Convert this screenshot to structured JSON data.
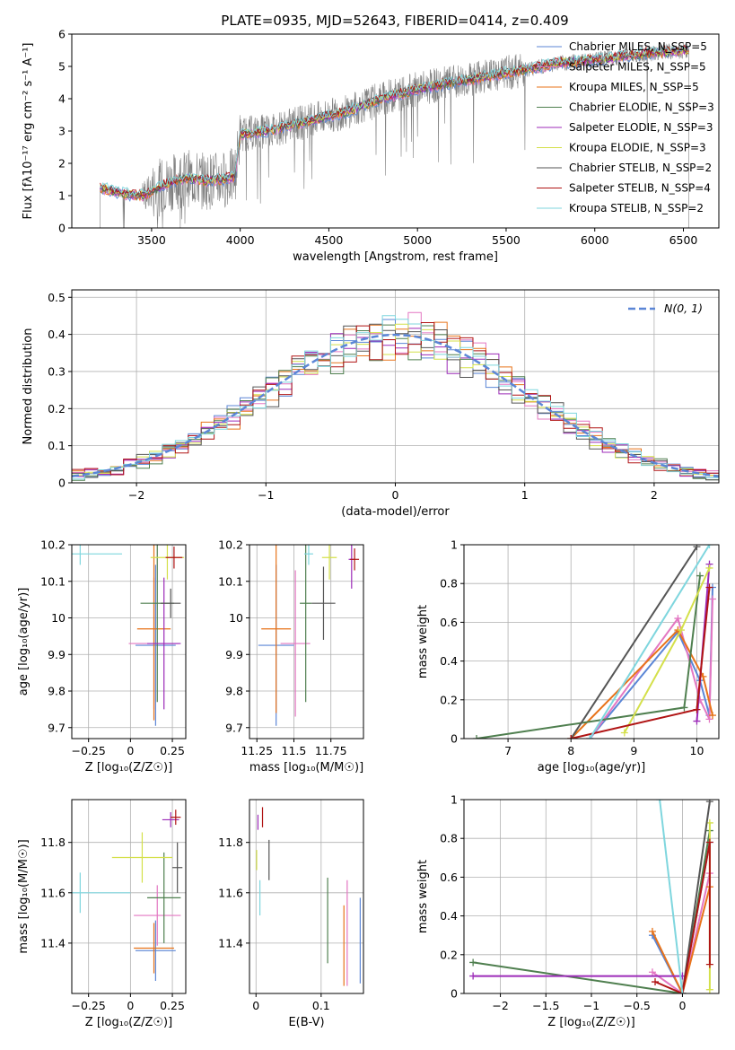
{
  "page_title": "PLATE=0935, MJD=52643, FIBERID=0414, z=0.409",
  "chart_data": [
    {
      "id": "spectrum",
      "type": "line",
      "xlabel": "wavelength [Angstrom, rest frame]",
      "ylabel": "Flux [fλ10⁻¹⁷ erg cm⁻² s⁻¹ A⁻¹]",
      "xlim": [
        3050,
        6700
      ],
      "ylim": [
        0,
        6
      ],
      "xticks": [
        3500,
        4000,
        4500,
        5000,
        5500,
        6000,
        6500
      ],
      "yticks": [
        0,
        1,
        2,
        3,
        4,
        5,
        6
      ],
      "grid": false,
      "legend_position": "top-right",
      "data_range": [
        3210,
        6530
      ],
      "continuum": {
        "x": [
          3210,
          3350,
          3450,
          3600,
          3700,
          3800,
          3900,
          3970,
          4000,
          4150,
          4300,
          4450,
          4600,
          4800,
          5000,
          5200,
          5400,
          5600,
          5800,
          6000,
          6200,
          6400,
          6530
        ],
        "y": [
          1.25,
          1.05,
          1.0,
          1.4,
          1.55,
          1.45,
          1.5,
          1.6,
          2.9,
          3.0,
          3.2,
          3.4,
          3.6,
          4.0,
          4.3,
          4.5,
          4.7,
          4.9,
          5.1,
          5.2,
          5.35,
          5.45,
          5.5
        ]
      },
      "series": [
        {
          "name": "Chabrier MILES, N_SSP=5",
          "color": "#5b86d6"
        },
        {
          "name": "Salpeter MILES, N_SSP=5",
          "color": "#e377c2"
        },
        {
          "name": "Kroupa MILES, N_SSP=5",
          "color": "#e8731a"
        },
        {
          "name": "Chabrier ELODIE, N_SSP=3",
          "color": "#4f7f4f"
        },
        {
          "name": "Salpeter ELODIE, N_SSP=3",
          "color": "#9c2bb8"
        },
        {
          "name": "Kroupa ELODIE, N_SSP=3",
          "color": "#d4e04a"
        },
        {
          "name": "Chabrier STELIB, N_SSP=2",
          "color": "#555555"
        },
        {
          "name": "Salpeter STELIB, N_SSP=4",
          "color": "#b01414"
        },
        {
          "name": "Kroupa STELIB, N_SSP=2",
          "color": "#7fd6de"
        }
      ],
      "data_color": "#808080"
    },
    {
      "id": "residuals",
      "type": "line",
      "xlabel": "(data-model)/error",
      "ylabel": "Normed distribution",
      "xlim": [
        -2.5,
        2.5
      ],
      "ylim": [
        0,
        0.52
      ],
      "xticks": [
        -2,
        -1,
        0,
        1,
        2
      ],
      "yticks": [
        0.0,
        0.1,
        0.2,
        0.3,
        0.4,
        0.5
      ],
      "grid": true,
      "legend_position": "top-right",
      "legend_label": "N(0, 1)",
      "normal_color": "#5b86d6",
      "bin_width": 0.1
    },
    {
      "id": "age_vs_Z",
      "type": "scatter",
      "xlabel": "Z [log₁₀(Z/Z☉)]",
      "ylabel": "age  [log₁₀(age/yr)]",
      "xlim": [
        -0.35,
        0.33
      ],
      "ylim": [
        9.67,
        10.2
      ],
      "xticks": [
        -0.25,
        0.0,
        0.25
      ],
      "yticks": [
        9.7,
        9.8,
        9.9,
        10.0,
        10.1,
        10.2
      ],
      "grid": true,
      "points": [
        {
          "x": 0.15,
          "y": 9.925,
          "xerr": 0.12,
          "yerr": 0.22,
          "color": "#5b86d6"
        },
        {
          "x": 0.14,
          "y": 9.93,
          "xerr": 0.15,
          "yerr": 0.18,
          "color": "#e377c2"
        },
        {
          "x": 0.14,
          "y": 9.97,
          "xerr": 0.1,
          "yerr": 0.25,
          "color": "#e8731a"
        },
        {
          "x": 0.16,
          "y": 10.04,
          "xerr": 0.1,
          "yerr": 0.27,
          "color": "#4f7f4f"
        },
        {
          "x": 0.2,
          "y": 9.93,
          "xerr": 0.1,
          "yerr": 0.18,
          "color": "#9c2bb8"
        },
        {
          "x": 0.22,
          "y": 10.165,
          "xerr": 0.1,
          "yerr": 0.06,
          "color": "#d4e04a"
        },
        {
          "x": 0.24,
          "y": 10.04,
          "xerr": 0.06,
          "yerr": 0.04,
          "color": "#555555"
        },
        {
          "x": 0.26,
          "y": 10.165,
          "xerr": 0.05,
          "yerr": 0.03,
          "color": "#b01414"
        },
        {
          "x": -0.3,
          "y": 10.175,
          "xerr": 0.25,
          "yerr": 0.03,
          "color": "#7fd6de"
        }
      ]
    },
    {
      "id": "age_vs_mass",
      "type": "scatter",
      "xlabel": "mass [log₁₀(M/M☉)]",
      "ylabel": "",
      "xlim": [
        11.2,
        11.97
      ],
      "ylim": [
        9.67,
        10.2
      ],
      "xticks": [
        11.25,
        11.5,
        11.75
      ],
      "yticks": [
        9.7,
        9.8,
        9.9,
        10.0,
        10.1,
        10.2
      ],
      "grid": true,
      "points": [
        {
          "x": 11.38,
          "y": 9.925,
          "xerr": 0.12,
          "yerr": 0.22,
          "color": "#5b86d6"
        },
        {
          "x": 11.51,
          "y": 9.93,
          "xerr": 0.1,
          "yerr": 0.2,
          "color": "#e377c2"
        },
        {
          "x": 11.38,
          "y": 9.97,
          "xerr": 0.1,
          "yerr": 0.23,
          "color": "#e8731a"
        },
        {
          "x": 11.58,
          "y": 10.04,
          "xerr": 0.04,
          "yerr": 0.27,
          "color": "#4f7f4f"
        },
        {
          "x": 11.89,
          "y": 10.16,
          "xerr": 0.02,
          "yerr": 0.08,
          "color": "#9c2bb8"
        },
        {
          "x": 11.74,
          "y": 10.165,
          "xerr": 0.05,
          "yerr": 0.06,
          "color": "#d4e04a"
        },
        {
          "x": 11.7,
          "y": 10.04,
          "xerr": 0.08,
          "yerr": 0.1,
          "color": "#555555"
        },
        {
          "x": 11.91,
          "y": 10.16,
          "xerr": 0.03,
          "yerr": 0.03,
          "color": "#b01414"
        },
        {
          "x": 11.6,
          "y": 10.175,
          "xerr": 0.03,
          "yerr": 0.03,
          "color": "#7fd6de"
        }
      ]
    },
    {
      "id": "weight_vs_age",
      "type": "line",
      "xlabel": "age  [log₁₀(age/yr)]",
      "ylabel": "mass weight",
      "xlim": [
        6.3,
        10.35
      ],
      "ylim": [
        0,
        1
      ],
      "xticks": [
        7,
        8,
        9,
        10
      ],
      "yticks": [
        0.0,
        0.2,
        0.4,
        0.6,
        0.8,
        1.0
      ],
      "grid": true,
      "series": [
        {
          "color": "#5b86d6",
          "x": [
            8.3,
            9.7,
            10.05,
            10.2,
            10.25
          ],
          "y": [
            0.0,
            0.55,
            0.3,
            0.12,
            0.78
          ]
        },
        {
          "color": "#e377c2",
          "x": [
            8.3,
            9.7,
            10.05,
            10.2,
            10.25
          ],
          "y": [
            0.0,
            0.62,
            0.2,
            0.1,
            0.72
          ]
        },
        {
          "color": "#e8731a",
          "x": [
            8.0,
            9.7,
            10.1,
            10.25
          ],
          "y": [
            0.0,
            0.56,
            0.32,
            0.12
          ]
        },
        {
          "color": "#4f7f4f",
          "x": [
            6.5,
            9.8,
            10.05
          ],
          "y": [
            0.0,
            0.16,
            0.84
          ]
        },
        {
          "color": "#9c2bb8",
          "x": [
            10.0,
            10.2
          ],
          "y": [
            0.09,
            0.9
          ]
        },
        {
          "color": "#d4e04a",
          "x": [
            8.85,
            9.75,
            10.2
          ],
          "y": [
            0.03,
            0.56,
            0.88
          ]
        },
        {
          "color": "#555555",
          "x": [
            8.0,
            10.0
          ],
          "y": [
            0.0,
            0.99
          ]
        },
        {
          "color": "#b01414",
          "x": [
            8.0,
            10.0,
            10.2
          ],
          "y": [
            0.0,
            0.15,
            0.78
          ]
        },
        {
          "color": "#7fd6de",
          "x": [
            8.3,
            10.2
          ],
          "y": [
            0.0,
            1.0
          ]
        }
      ]
    },
    {
      "id": "mass_vs_Z",
      "type": "scatter",
      "xlabel": "Z [log₁₀(Z/Z☉)]",
      "ylabel": "mass [log₁₀(M/M☉)]",
      "xlim": [
        -0.35,
        0.33
      ],
      "ylim": [
        11.2,
        11.97
      ],
      "xticks": [
        -0.25,
        0.0,
        0.25
      ],
      "yticks": [
        11.4,
        11.6,
        11.8
      ],
      "grid": true,
      "points": [
        {
          "x": 0.15,
          "y": 11.37,
          "xerr": 0.12,
          "yerr": 0.12,
          "color": "#5b86d6"
        },
        {
          "x": 0.16,
          "y": 11.51,
          "xerr": 0.14,
          "yerr": 0.12,
          "color": "#e377c2"
        },
        {
          "x": 0.14,
          "y": 11.38,
          "xerr": 0.12,
          "yerr": 0.1,
          "color": "#e8731a"
        },
        {
          "x": 0.2,
          "y": 11.58,
          "xerr": 0.1,
          "yerr": 0.18,
          "color": "#4f7f4f"
        },
        {
          "x": 0.24,
          "y": 11.89,
          "xerr": 0.05,
          "yerr": 0.03,
          "color": "#9c2bb8"
        },
        {
          "x": 0.07,
          "y": 11.74,
          "xerr": 0.18,
          "yerr": 0.1,
          "color": "#d4e04a"
        },
        {
          "x": 0.28,
          "y": 11.7,
          "xerr": 0.03,
          "yerr": 0.1,
          "color": "#555555"
        },
        {
          "x": 0.27,
          "y": 11.9,
          "xerr": 0.03,
          "yerr": 0.03,
          "color": "#b01414"
        },
        {
          "x": -0.3,
          "y": 11.6,
          "xerr": 0.3,
          "yerr": 0.08,
          "color": "#7fd6de"
        }
      ]
    },
    {
      "id": "mass_vs_ebv",
      "type": "scatter",
      "xlabel": "E(B-V)",
      "ylabel": "",
      "xlim": [
        -0.01,
        0.165
      ],
      "ylim": [
        11.2,
        11.97
      ],
      "xticks": [
        0.0,
        0.1
      ],
      "yticks": [
        11.4,
        11.6,
        11.8
      ],
      "grid": true,
      "points": [
        {
          "x": 0.16,
          "y": 11.41,
          "xerr": 0,
          "yerr": 0.17,
          "color": "#5b86d6"
        },
        {
          "x": 0.14,
          "y": 11.44,
          "xerr": 0,
          "yerr": 0.21,
          "color": "#e377c2"
        },
        {
          "x": 0.135,
          "y": 11.39,
          "xerr": 0,
          "yerr": 0.16,
          "color": "#e8731a"
        },
        {
          "x": 0.11,
          "y": 11.49,
          "xerr": 0,
          "yerr": 0.17,
          "color": "#4f7f4f"
        },
        {
          "x": 0.003,
          "y": 11.88,
          "xerr": 0,
          "yerr": 0.03,
          "color": "#9c2bb8"
        },
        {
          "x": 0.001,
          "y": 11.73,
          "xerr": 0,
          "yerr": 0.04,
          "color": "#d4e04a"
        },
        {
          "x": 0.02,
          "y": 11.73,
          "xerr": 0,
          "yerr": 0.08,
          "color": "#555555"
        },
        {
          "x": 0.01,
          "y": 11.9,
          "xerr": 0,
          "yerr": 0.04,
          "color": "#b01414"
        },
        {
          "x": 0.006,
          "y": 11.58,
          "xerr": 0,
          "yerr": 0.07,
          "color": "#7fd6de"
        }
      ]
    },
    {
      "id": "weight_vs_Z",
      "type": "line",
      "xlabel": "Z [log₁₀(Z/Z☉)]",
      "ylabel": "mass weight",
      "xlim": [
        -2.4,
        0.4
      ],
      "ylim": [
        0,
        1
      ],
      "xticks": [
        -2.0,
        -1.5,
        -1.0,
        -0.5,
        0.0
      ],
      "yticks": [
        0.0,
        0.2,
        0.4,
        0.6,
        0.8,
        1.0
      ],
      "grid": true,
      "series": [
        {
          "color": "#5b86d6",
          "x": [
            -0.33,
            0.0,
            0.3
          ],
          "y": [
            0.3,
            0.0,
            0.78
          ]
        },
        {
          "color": "#e377c2",
          "x": [
            -0.33,
            0.0,
            0.3
          ],
          "y": [
            0.11,
            0.0,
            0.62
          ]
        },
        {
          "color": "#e8731a",
          "x": [
            -0.33,
            0.0,
            0.3
          ],
          "y": [
            0.32,
            0.0,
            0.55
          ]
        },
        {
          "color": "#4f7f4f",
          "x": [
            -2.3,
            0.0,
            0.3
          ],
          "y": [
            0.16,
            0.0,
            0.84
          ]
        },
        {
          "color": "#9c2bb8",
          "x": [
            -2.3,
            0.0
          ],
          "y": [
            0.09,
            0.09
          ]
        },
        {
          "color": "#d4e04a",
          "x": [
            0.3,
            0.3
          ],
          "y": [
            0.02,
            0.88
          ]
        },
        {
          "color": "#555555",
          "x": [
            0.0,
            0.3
          ],
          "y": [
            0.0,
            0.99
          ]
        },
        {
          "color": "#b01414",
          "x": [
            -0.3,
            0.0,
            0.3,
            0.3
          ],
          "y": [
            0.06,
            0.0,
            0.78,
            0.15
          ]
        },
        {
          "color": "#7fd6de",
          "x": [
            -0.25,
            0.0
          ],
          "y": [
            1.0,
            0.0
          ]
        }
      ]
    }
  ]
}
